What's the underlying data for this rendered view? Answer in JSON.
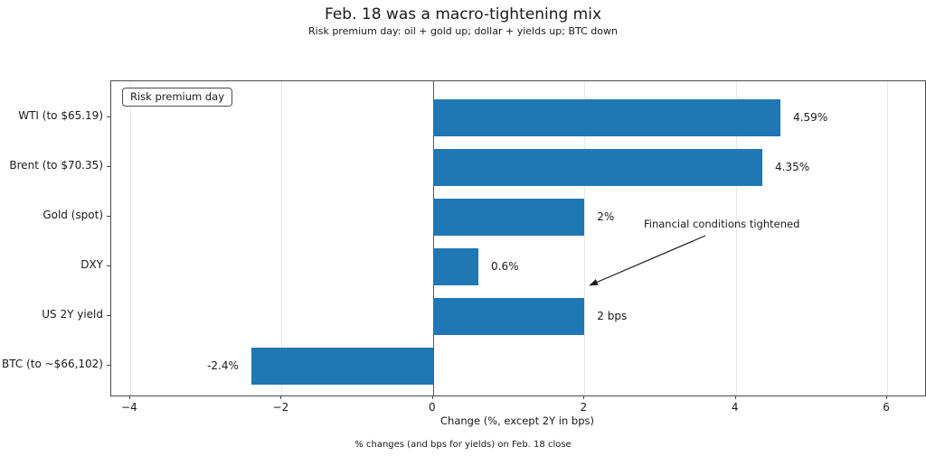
{
  "header": {
    "title": "Feb. 18 was a macro-tightening mix",
    "subtitle": "Risk premium day: oil + gold up; dollar + yields up; BTC down"
  },
  "legend": {
    "label": "Risk premium day"
  },
  "annotation": {
    "text": "Financial conditions tightened"
  },
  "axis": {
    "xlabel": "Change (%, except 2Y in bps)"
  },
  "footer": {
    "caption": "% changes (and bps for yields) on Feb. 18 close"
  },
  "colors": {
    "bar": "#1f77b4",
    "grid": "#e8e8e8",
    "zero_line": "#5a5a5a",
    "spine": "#4a4a4a",
    "text": "#1a1a1a"
  },
  "chart_data": {
    "type": "bar",
    "orientation": "horizontal",
    "title": "Feb. 18 was a macro-tightening mix",
    "subtitle": "Risk premium day: oil + gold up; dollar + yields up; BTC down",
    "categories": [
      "WTI (to $65.19)",
      "Brent (to $70.35)",
      "Gold (spot)",
      "DXY",
      "US 2Y yield",
      "BTC (to ~$66,102)"
    ],
    "values": [
      4.59,
      4.35,
      2,
      0.6,
      2,
      -2.4
    ],
    "value_labels": [
      "4.59%",
      "4.35%",
      "2%",
      "0.6%",
      "2 bps",
      "-2.4%"
    ],
    "xlabel": "Change (%, except 2Y in bps)",
    "xlim": [
      -4.25,
      6.5
    ],
    "xticks": [
      -4,
      -2,
      0,
      2,
      4,
      6
    ],
    "xtick_labels": [
      "−4",
      "−2",
      "0",
      "2",
      "4",
      "6"
    ],
    "grid": "vertical-light",
    "legend_position": "upper-left",
    "legend_entries": [
      "Risk premium day"
    ],
    "annotations": [
      "Financial conditions tightened"
    ],
    "caption": "% changes (and bps for yields) on Feb. 18 close",
    "bar_color": "#1f77b4"
  }
}
